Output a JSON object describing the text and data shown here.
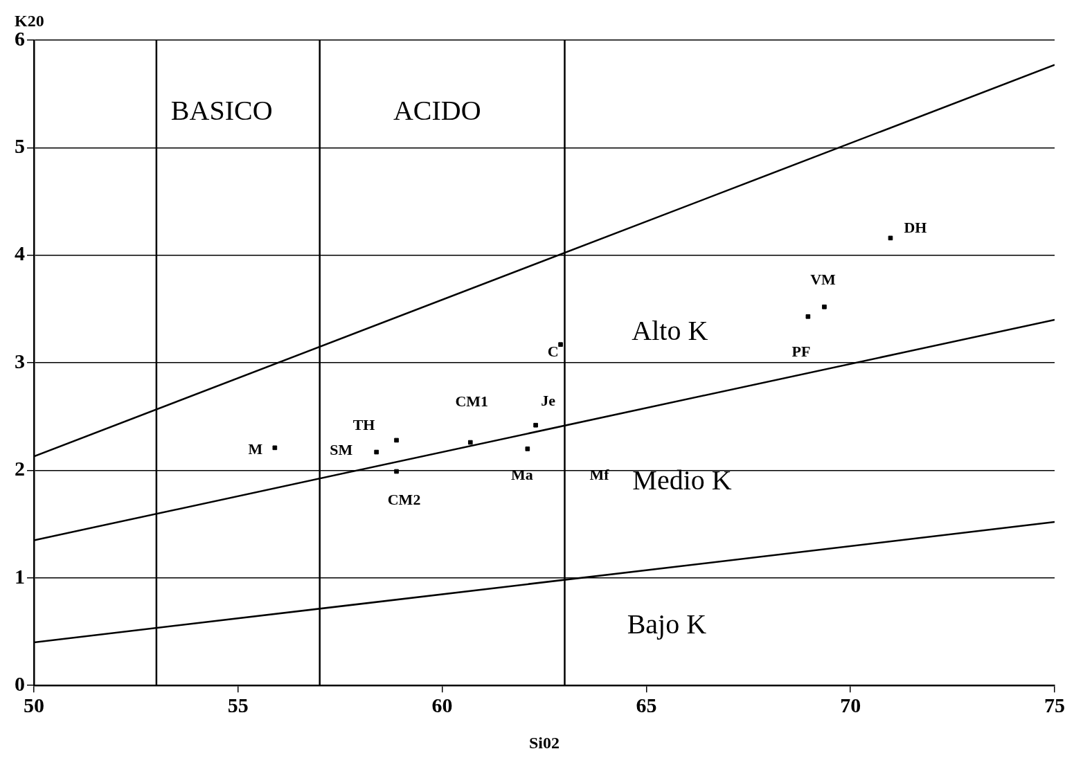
{
  "chart_data": {
    "type": "scatter",
    "xlabel": "Si02",
    "ylabel": "K20",
    "xlim": [
      50,
      75
    ],
    "ylim": [
      0,
      6
    ],
    "xticks": [
      50,
      55,
      60,
      65,
      70,
      75
    ],
    "yticks": [
      0,
      1,
      2,
      3,
      4,
      5,
      6
    ],
    "grid": "y",
    "legend": false,
    "series": [
      {
        "color": "#000000",
        "marker": "square",
        "x": [
          55.9,
          58.39,
          58.88,
          58.88,
          60.69,
          62.09,
          62.29,
          62.9,
          68.96,
          69.36,
          70.98
        ],
        "values": [
          2.21,
          2.17,
          2.28,
          1.99,
          2.26,
          2.2,
          2.42,
          3.17,
          3.43,
          3.52,
          4.16
        ]
      },
      {
        "type": "line",
        "color": "#000000",
        "x": [
          50,
          75
        ],
        "values": [
          2.13,
          5.77
        ]
      },
      {
        "type": "line",
        "color": "#000000",
        "x": [
          50,
          75
        ],
        "values": [
          1.35,
          3.4
        ]
      },
      {
        "type": "line",
        "color": "#000000",
        "x": [
          50,
          75
        ],
        "values": [
          0.4,
          1.52
        ]
      }
    ],
    "ref_lines": [
      {
        "axis": "x",
        "value": 53
      },
      {
        "axis": "x",
        "value": 57
      },
      {
        "axis": "x",
        "value": 63
      }
    ],
    "annotations": [
      "BASICO",
      "ACIDO",
      "Alto K",
      "Medio K",
      "Bajo K",
      "Mf",
      {
        "text": "M",
        "x": 55.9,
        "y": 2.21
      },
      {
        "text": "SM",
        "x": 58.39,
        "y": 2.17
      },
      {
        "text": "TH",
        "x": 58.88,
        "y": 2.28
      },
      {
        "text": "CM2",
        "x": 58.88,
        "y": 1.99
      },
      {
        "text": "CM1",
        "x": 60.69,
        "y": 2.26
      },
      {
        "text": "Ma",
        "x": 62.09,
        "y": 2.2
      },
      {
        "text": "Je",
        "x": 62.29,
        "y": 2.42
      },
      {
        "text": "C",
        "x": 62.9,
        "y": 3.17
      },
      {
        "text": "PF",
        "x": 68.96,
        "y": 3.43
      },
      {
        "text": "VM",
        "x": 69.36,
        "y": 3.52
      },
      {
        "text": "DH",
        "x": 70.98,
        "y": 4.16
      }
    ]
  }
}
